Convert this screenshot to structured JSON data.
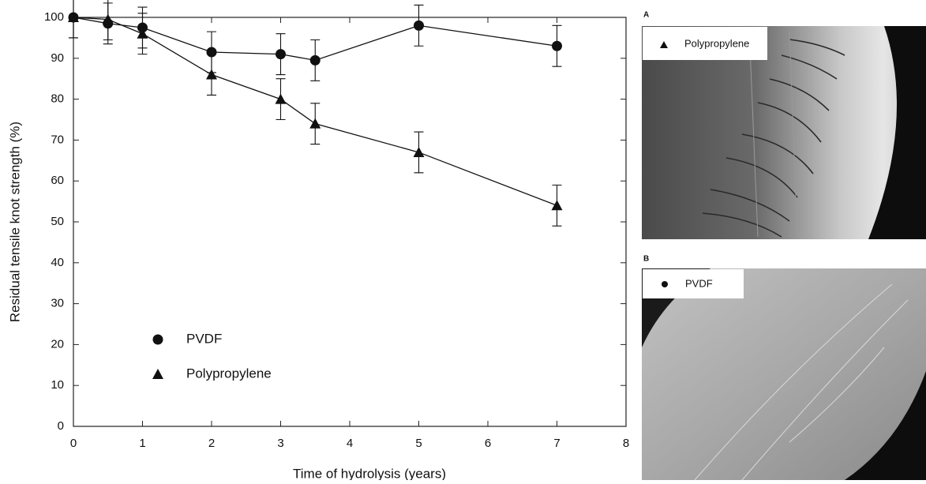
{
  "chart_data": {
    "type": "line",
    "x_label": "Time of hydrolysis (years)",
    "y_label": "Residual tensile knot strength (%)",
    "x": [
      0,
      0.5,
      1,
      2,
      3,
      3.5,
      5,
      7
    ],
    "series": [
      {
        "name": "PVDF",
        "marker": "circle",
        "color": "#111111",
        "values": [
          100,
          98.5,
          97.5,
          91.5,
          91,
          89.5,
          98,
          93
        ],
        "errors": [
          5,
          5,
          5,
          5,
          5,
          5,
          5,
          5
        ]
      },
      {
        "name": "Polypropylene",
        "marker": "triangle",
        "color": "#111111",
        "values": [
          100,
          99.5,
          96,
          86,
          80,
          74,
          67,
          54
        ],
        "errors": [
          5,
          5,
          5,
          5,
          5,
          5,
          5,
          5
        ]
      }
    ],
    "xlim": [
      0,
      8
    ],
    "xticks": [
      0,
      1,
      2,
      3,
      4,
      5,
      6,
      7,
      8
    ],
    "ylim": [
      0,
      100
    ],
    "yticks": [
      0,
      10,
      20,
      30,
      40,
      50,
      60,
      70,
      80,
      90,
      100
    ],
    "grid": false
  },
  "panels": [
    {
      "letter": "A",
      "legend": "Polypropylene"
    },
    {
      "letter": "B",
      "legend": "PVDF"
    }
  ]
}
